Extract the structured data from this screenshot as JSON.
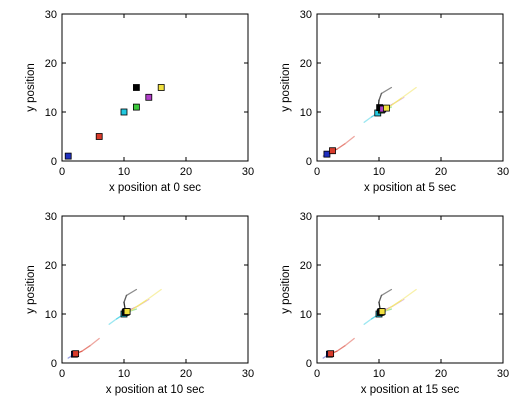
{
  "chart_data": [
    {
      "type": "scatter",
      "xlabel": "x position at 0 sec",
      "ylabel": "y position",
      "xlim": [
        0,
        30
      ],
      "ylim": [
        0,
        30
      ],
      "xticks": [
        0,
        10,
        20,
        30
      ],
      "yticks": [
        0,
        10,
        20,
        30
      ],
      "series": [
        {
          "color": "#1f2fbf",
          "points": [
            [
              1,
              1
            ]
          ]
        },
        {
          "color": "#d93b2b",
          "points": [
            [
              6,
              5
            ]
          ]
        },
        {
          "color": "#22c9e0",
          "points": [
            [
              10,
              10
            ]
          ]
        },
        {
          "color": "#3cc83c",
          "points": [
            [
              12,
              11
            ]
          ]
        },
        {
          "color": "#000000",
          "points": [
            [
              12,
              15
            ]
          ]
        },
        {
          "color": "#b040c8",
          "points": [
            [
              14,
              13
            ]
          ]
        },
        {
          "color": "#f0e040",
          "points": [
            [
              16,
              15
            ]
          ]
        }
      ]
    },
    {
      "type": "line",
      "xlabel": "x position at 5 sec",
      "ylabel": "y position",
      "xlim": [
        0,
        30
      ],
      "ylim": [
        0,
        30
      ],
      "xticks": [
        0,
        10,
        20,
        30
      ],
      "yticks": [
        0,
        10,
        20,
        30
      ],
      "series": [
        {
          "color": "#1f2fbf",
          "path": [
            [
              1,
              1
            ],
            [
              1.5,
              1.4
            ],
            [
              2.2,
              1.6
            ]
          ],
          "marker": [
            1.6,
            1.4
          ]
        },
        {
          "color": "#d93b2b",
          "path": [
            [
              6,
              5
            ],
            [
              4.5,
              3.5
            ],
            [
              3.2,
              2.4
            ],
            [
              2.4,
              2
            ]
          ],
          "marker": [
            2.5,
            2.1
          ]
        },
        {
          "color": "#22c9e0",
          "path": [
            [
              7.6,
              7.9
            ],
            [
              8.8,
              9
            ],
            [
              9.8,
              9.8
            ]
          ],
          "marker": [
            9.8,
            9.8
          ]
        },
        {
          "color": "#3cc83c",
          "path": [
            [
              12,
              11
            ],
            [
              11,
              10.6
            ],
            [
              10.4,
              10.4
            ]
          ],
          "marker": [
            10.4,
            10.4
          ]
        },
        {
          "color": "#000000",
          "path": [
            [
              12,
              15
            ],
            [
              10.4,
              13.8
            ],
            [
              10,
              12.4
            ],
            [
              9.9,
              11.2
            ]
          ],
          "marker": [
            10.1,
            10.9
          ]
        },
        {
          "color": "#b040c8",
          "path": [
            [
              14,
              13
            ],
            [
              12.2,
              11.6
            ],
            [
              11.2,
              10.8
            ]
          ],
          "marker": [
            10.6,
            10.6
          ]
        },
        {
          "color": "#f0e040",
          "path": [
            [
              16,
              15
            ],
            [
              13.6,
              12.8
            ],
            [
              11.6,
              11
            ]
          ],
          "marker": [
            11.2,
            10.8
          ]
        }
      ]
    },
    {
      "type": "line",
      "xlabel": "x position at 10 sec",
      "ylabel": "y position",
      "xlim": [
        0,
        30
      ],
      "ylim": [
        0,
        30
      ],
      "xticks": [
        0,
        10,
        20,
        30
      ],
      "yticks": [
        0,
        10,
        20,
        30
      ],
      "series": [
        {
          "color": "#1f2fbf",
          "path": [
            [
              1,
              1
            ],
            [
              1.5,
              1.4
            ],
            [
              2,
              1.7
            ]
          ],
          "marker": [
            2,
            1.8
          ]
        },
        {
          "color": "#d93b2b",
          "path": [
            [
              6,
              5
            ],
            [
              4.5,
              3.5
            ],
            [
              3.2,
              2.4
            ],
            [
              2.2,
              1.9
            ]
          ],
          "marker": [
            2.2,
            1.9
          ]
        },
        {
          "color": "#22c9e0",
          "path": [
            [
              7.6,
              7.9
            ],
            [
              8.8,
              9
            ],
            [
              10,
              10
            ]
          ],
          "marker": [
            10,
            10
          ]
        },
        {
          "color": "#3cc83c",
          "path": [
            [
              12,
              11
            ],
            [
              11,
              10.6
            ],
            [
              10.3,
              10.3
            ]
          ],
          "marker": [
            10.2,
            10.3
          ]
        },
        {
          "color": "#000000",
          "path": [
            [
              12,
              15
            ],
            [
              10.4,
              13.8
            ],
            [
              10,
              12.4
            ],
            [
              10.2,
              10.8
            ]
          ],
          "marker": [
            10.3,
            10.5
          ]
        },
        {
          "color": "#b040c8",
          "path": [
            [
              14,
              13
            ],
            [
              12.2,
              11.6
            ],
            [
              10.6,
              10.6
            ]
          ],
          "marker": [
            10.4,
            10.4
          ]
        },
        {
          "color": "#f0e040",
          "path": [
            [
              16,
              15
            ],
            [
              13.6,
              12.8
            ],
            [
              11.2,
              10.8
            ]
          ],
          "marker": [
            10.5,
            10.5
          ]
        }
      ]
    },
    {
      "type": "line",
      "xlabel": "x position at 15 sec",
      "ylabel": "y position",
      "xlim": [
        0,
        30
      ],
      "ylim": [
        0,
        30
      ],
      "xticks": [
        0,
        10,
        20,
        30
      ],
      "yticks": [
        0,
        10,
        20,
        30
      ],
      "series": [
        {
          "color": "#1f2fbf",
          "path": [
            [
              1,
              1
            ],
            [
              1.5,
              1.4
            ],
            [
              2,
              1.7
            ]
          ],
          "marker": [
            2,
            1.8
          ]
        },
        {
          "color": "#d93b2b",
          "path": [
            [
              6,
              5
            ],
            [
              4.5,
              3.5
            ],
            [
              3.2,
              2.4
            ],
            [
              2.2,
              1.9
            ]
          ],
          "marker": [
            2.2,
            1.9
          ]
        },
        {
          "color": "#22c9e0",
          "path": [
            [
              7.6,
              7.9
            ],
            [
              8.8,
              9
            ],
            [
              10,
              10
            ]
          ],
          "marker": [
            10,
            10
          ]
        },
        {
          "color": "#3cc83c",
          "path": [
            [
              12,
              11
            ],
            [
              11,
              10.6
            ],
            [
              10.3,
              10.3
            ]
          ],
          "marker": [
            10.2,
            10.3
          ]
        },
        {
          "color": "#000000",
          "path": [
            [
              12,
              15
            ],
            [
              10.4,
              13.8
            ],
            [
              10,
              12.4
            ],
            [
              10.2,
              10.8
            ]
          ],
          "marker": [
            10.3,
            10.5
          ]
        },
        {
          "color": "#b040c8",
          "path": [
            [
              14,
              13
            ],
            [
              12.2,
              11.6
            ],
            [
              10.6,
              10.6
            ]
          ],
          "marker": [
            10.4,
            10.4
          ]
        },
        {
          "color": "#f0e040",
          "path": [
            [
              16,
              15
            ],
            [
              13.6,
              12.8
            ],
            [
              11.2,
              10.8
            ]
          ],
          "marker": [
            10.5,
            10.5
          ]
        }
      ]
    }
  ]
}
